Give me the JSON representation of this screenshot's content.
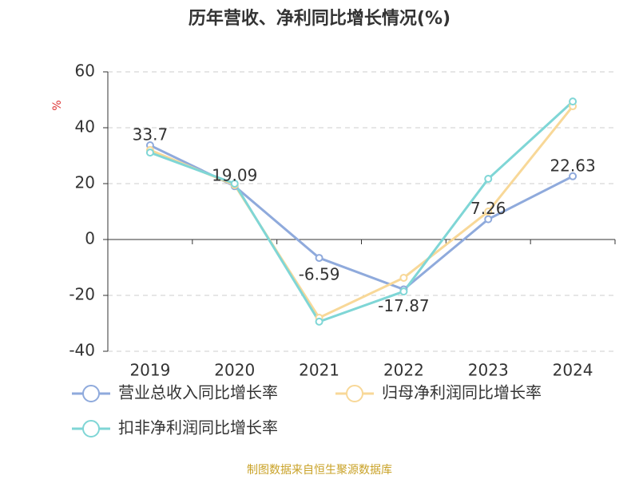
{
  "chart_data": {
    "type": "line",
    "title": "历年营收、净利同比增长情况(%)",
    "y_label": "%",
    "categories": [
      "2019",
      "2020",
      "2021",
      "2022",
      "2023",
      "2024"
    ],
    "series": [
      {
        "name": "营业总收入同比增长率",
        "color": "#8faadc",
        "values": [
          33.7,
          19.09,
          -6.59,
          -17.87,
          7.26,
          22.63
        ],
        "show_values": true
      },
      {
        "name": "归母净利润同比增长率",
        "color": "#f8d898",
        "values": [
          32,
          19.5,
          -28,
          -13.7,
          10,
          47.7
        ]
      },
      {
        "name": "扣非净利润同比增长率",
        "color": "#7fd6d6",
        "values": [
          31.1,
          20,
          -29.4,
          -18.6,
          21.7,
          49.4
        ]
      }
    ],
    "ylim": [
      -40,
      60
    ],
    "yticks": [
      -40,
      -20,
      0,
      20,
      40,
      60
    ],
    "grid": true,
    "source": "制图数据来自恒生聚源数据库"
  }
}
